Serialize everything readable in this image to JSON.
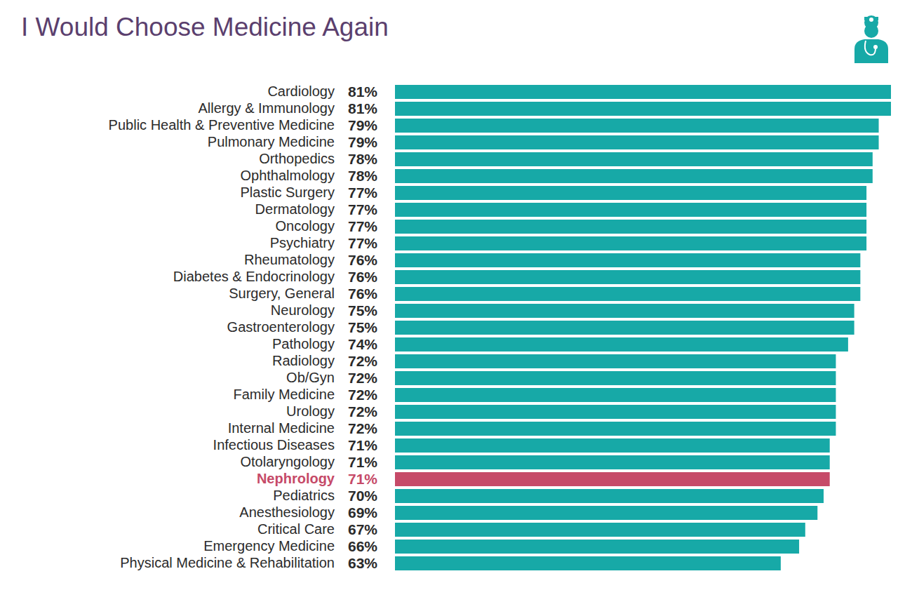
{
  "chart_data": {
    "type": "bar",
    "title": "I Would Choose Medicine Again",
    "orientation": "horizontal",
    "categories": [
      "Cardiology",
      "Allergy & Immunology",
      "Public Health & Preventive Medicine",
      "Pulmonary Medicine",
      "Orthopedics",
      "Ophthalmology",
      "Plastic Surgery",
      "Dermatology",
      "Oncology",
      "Psychiatry",
      "Rheumatology",
      "Diabetes & Endocrinology",
      "Surgery, General",
      "Neurology",
      "Gastroenterology",
      "Pathology",
      "Radiology",
      "Ob/Gyn",
      "Family Medicine",
      "Urology",
      "Internal Medicine",
      "Infectious Diseases",
      "Otolaryngology",
      "Nephrology",
      "Pediatrics",
      "Anesthesiology",
      "Critical Care",
      "Emergency Medicine",
      "Physical Medicine & Rehabilitation"
    ],
    "values": [
      81,
      81,
      79,
      79,
      78,
      78,
      77,
      77,
      77,
      77,
      76,
      76,
      76,
      75,
      75,
      74,
      72,
      72,
      72,
      72,
      72,
      71,
      71,
      71,
      70,
      69,
      67,
      66,
      63
    ],
    "value_labels": [
      "81%",
      "81%",
      "79%",
      "79%",
      "78%",
      "78%",
      "77%",
      "77%",
      "77%",
      "77%",
      "76%",
      "76%",
      "76%",
      "75%",
      "75%",
      "74%",
      "72%",
      "72%",
      "72%",
      "72%",
      "72%",
      "71%",
      "71%",
      "71%",
      "70%",
      "69%",
      "67%",
      "66%",
      "63%"
    ],
    "colors": [
      "#17a9a7",
      "#17a9a7",
      "#17a9a7",
      "#17a9a7",
      "#17a9a7",
      "#17a9a7",
      "#17a9a7",
      "#17a9a7",
      "#17a9a7",
      "#17a9a7",
      "#17a9a7",
      "#17a9a7",
      "#17a9a7",
      "#17a9a7",
      "#17a9a7",
      "#17a9a7",
      "#17a9a7",
      "#17a9a7",
      "#17a9a7",
      "#17a9a7",
      "#17a9a7",
      "#17a9a7",
      "#17a9a7",
      "#c64a68",
      "#17a9a7",
      "#17a9a7",
      "#17a9a7",
      "#17a9a7",
      "#17a9a7"
    ],
    "xlim": [
      0,
      81
    ],
    "tick_labels": false,
    "data_labels": true,
    "grid": false
  }
}
